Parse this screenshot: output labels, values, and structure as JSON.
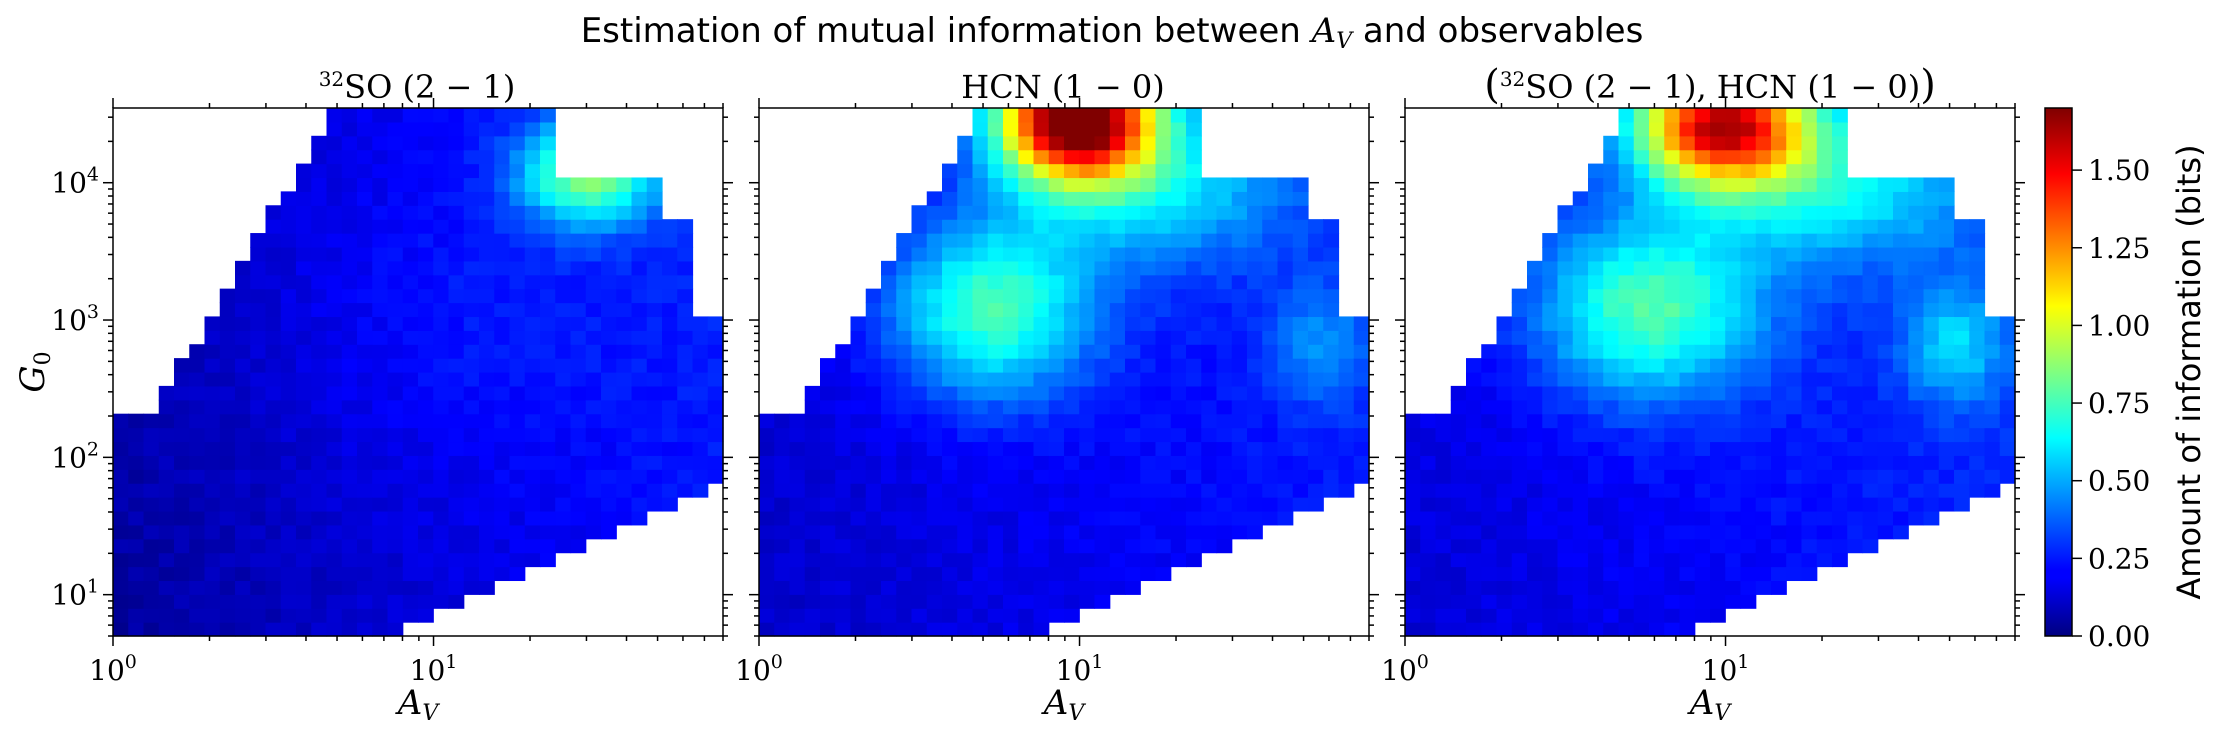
{
  "title": "Estimation of mutual information between A_V and observables",
  "colorbar": {
    "label": "Amount of information (bits)",
    "ticks": [
      "0.00",
      "0.25",
      "0.50",
      "0.75",
      "1.00",
      "1.25",
      "1.50"
    ],
    "range": [
      0,
      1.7
    ],
    "colormap": "jet"
  },
  "chart_data": [
    {
      "type": "heatmap",
      "title": "32SO (2 − 1)",
      "xlabel": "A_V",
      "ylabel": "G_0",
      "xscale": "log",
      "yscale": "log",
      "xlim": [
        1,
        80
      ],
      "ylim": [
        5,
        35000
      ],
      "xticks": [
        "10^0",
        "10^1"
      ],
      "yticks": [
        "10^1",
        "10^2",
        "10^3",
        "10^4"
      ],
      "peak": {
        "A_V": 25,
        "G_0": 15000,
        "bits": 0.75
      },
      "background_bits": 0.1
    },
    {
      "type": "heatmap",
      "title": "HCN (1 − 0)",
      "xlabel": "A_V",
      "xscale": "log",
      "yscale": "log",
      "xlim": [
        1,
        80
      ],
      "ylim": [
        5,
        35000
      ],
      "xticks": [
        "10^0",
        "10^1"
      ],
      "peak": {
        "A_V": 10,
        "G_0": 30000,
        "bits": 1.7
      },
      "secondary": {
        "A_V": 5,
        "G_0": 1500,
        "bits": 0.7
      },
      "background_bits": 0.2
    },
    {
      "type": "heatmap",
      "title": "(32SO (2 − 1), HCN (1 − 0))",
      "xlabel": "A_V",
      "xscale": "log",
      "yscale": "log",
      "xlim": [
        1,
        80
      ],
      "ylim": [
        5,
        35000
      ],
      "xticks": [
        "10^0",
        "10^1"
      ],
      "peak": {
        "A_V": 10,
        "G_0": 25000,
        "bits": 1.45
      },
      "secondary": {
        "A_V": 5,
        "G_0": 1500,
        "bits": 0.75
      },
      "background_bits": 0.2
    }
  ]
}
